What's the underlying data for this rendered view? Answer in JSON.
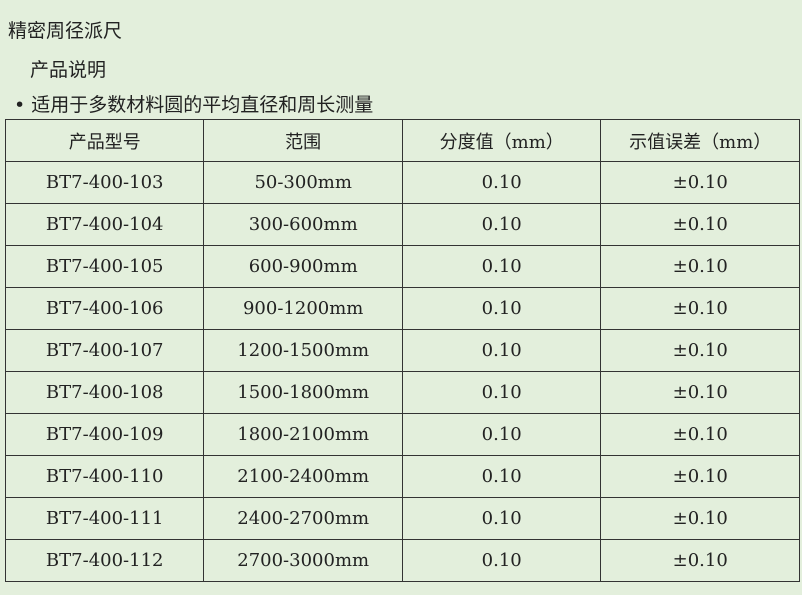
{
  "title": "精密周径派尺",
  "subtitle": "产品说明",
  "bullet": "• 适用于多数材料圆的平均直径和周长测量",
  "table": {
    "headers": [
      "产品型号",
      "范围",
      "分度值（mm）",
      "示值误差（mm）"
    ],
    "rows": [
      [
        "BT7-400-103",
        "50-300mm",
        "0.10",
        "±0.10"
      ],
      [
        "BT7-400-104",
        "300-600mm",
        "0.10",
        "±0.10"
      ],
      [
        "BT7-400-105",
        "600-900mm",
        "0.10",
        "±0.10"
      ],
      [
        "BT7-400-106",
        "900-1200mm",
        "0.10",
        "±0.10"
      ],
      [
        "BT7-400-107",
        "1200-1500mm",
        "0.10",
        "±0.10"
      ],
      [
        "BT7-400-108",
        "1500-1800mm",
        "0.10",
        "±0.10"
      ],
      [
        "BT7-400-109",
        "1800-2100mm",
        "0.10",
        "±0.10"
      ],
      [
        "BT7-400-110",
        "2100-2400mm",
        "0.10",
        "±0.10"
      ],
      [
        "BT7-400-111",
        "2400-2700mm",
        "0.10",
        "±0.10"
      ],
      [
        "BT7-400-112",
        "2700-3000mm",
        "0.10",
        "±0.10"
      ]
    ]
  },
  "colors": {
    "background": "#e3efdc",
    "border": "#333333"
  }
}
